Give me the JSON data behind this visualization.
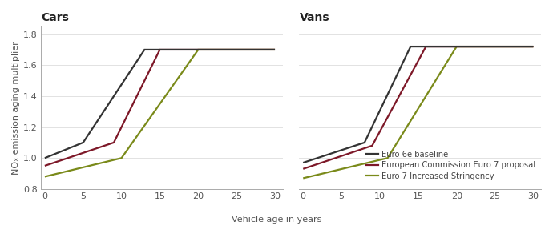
{
  "cars": {
    "euro6e": {
      "x": [
        0,
        5,
        13,
        30
      ],
      "y": [
        1.0,
        1.1,
        1.7,
        1.7
      ]
    },
    "euro7_ec": {
      "x": [
        0,
        9,
        15,
        30
      ],
      "y": [
        0.95,
        1.1,
        1.7,
        1.7
      ]
    },
    "euro7_is": {
      "x": [
        0,
        10,
        20,
        30
      ],
      "y": [
        0.88,
        1.0,
        1.7,
        1.7
      ]
    }
  },
  "vans": {
    "euro6e": {
      "x": [
        0,
        8,
        14,
        30
      ],
      "y": [
        0.97,
        1.1,
        1.72,
        1.72
      ]
    },
    "euro7_ec": {
      "x": [
        0,
        9,
        16,
        30
      ],
      "y": [
        0.93,
        1.08,
        1.72,
        1.72
      ]
    },
    "euro7_is": {
      "x": [
        0,
        11,
        20,
        30
      ],
      "y": [
        0.87,
        1.0,
        1.72,
        1.72
      ]
    }
  },
  "colors": {
    "euro6e": "#333333",
    "euro7_ec": "#7d1828",
    "euro7_is": "#7a8a1a"
  },
  "legend_labels": [
    "Euro 6e baseline",
    "European Commission Euro 7 proposal",
    "Euro 7 Increased Stringency"
  ],
  "title_left": "Cars",
  "title_right": "Vans",
  "ylabel": "NOₓ emission aging multiplier",
  "xlabel": "Vehicle age in years",
  "ylim": [
    0.8,
    1.85
  ],
  "xlim": [
    -0.5,
    31
  ],
  "xticks": [
    0,
    5,
    10,
    15,
    20,
    25,
    30
  ],
  "yticks": [
    0.8,
    1.0,
    1.2,
    1.4,
    1.6,
    1.8
  ],
  "background_color": "#ffffff",
  "grid_color": "#dddddd",
  "linewidth": 1.6,
  "title_fontsize": 10,
  "tick_fontsize": 8,
  "label_fontsize": 8,
  "legend_fontsize": 7.2
}
